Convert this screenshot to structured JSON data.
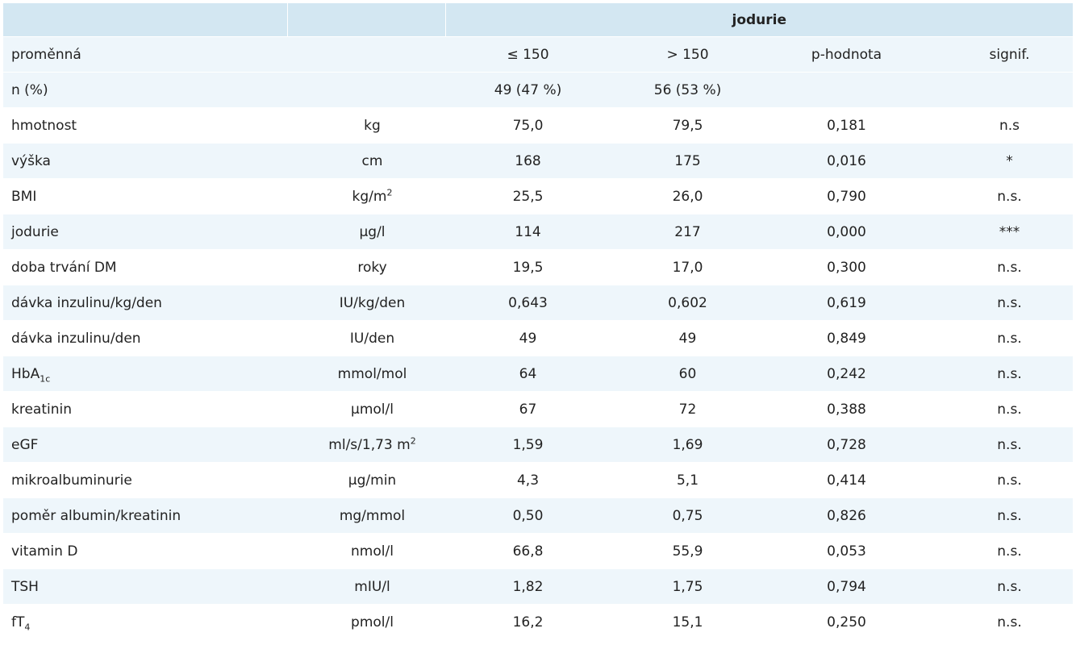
{
  "table": {
    "group_header": "jodurie",
    "column_headers": [
      "proměnná",
      "",
      "≤ 150",
      "> 150",
      "p-hodnota",
      "signif."
    ],
    "rows": [
      {
        "name": "n (%)",
        "unit": "",
        "le150": "49 (47 %)",
        "gt150": "56 (53 %)",
        "p": "",
        "signif": ""
      },
      {
        "name": "hmotnost",
        "unit": "kg",
        "le150": "75,0",
        "gt150": "79,5",
        "p": "0,181",
        "signif": "n.s"
      },
      {
        "name": "výška",
        "unit": "cm",
        "le150": "168",
        "gt150": "175",
        "p": "0,016",
        "signif": "*"
      },
      {
        "name": "BMI",
        "unit": "kg/m",
        "unit_sup": "2",
        "le150": "25,5",
        "gt150": "26,0",
        "p": "0,790",
        "signif": "n.s."
      },
      {
        "name": "jodurie",
        "unit": "μg/l",
        "le150": "114",
        "gt150": "217",
        "p": "0,000",
        "signif": "***"
      },
      {
        "name": "doba trvání DM",
        "unit": "roky",
        "le150": "19,5",
        "gt150": "17,0",
        "p": "0,300",
        "signif": "n.s."
      },
      {
        "name": "dávka inzulinu/kg/den",
        "unit": "IU/kg/den",
        "le150": "0,643",
        "gt150": "0,602",
        "p": "0,619",
        "signif": "n.s."
      },
      {
        "name": "dávka inzulinu/den",
        "unit": "IU/den",
        "le150": "49",
        "gt150": "49",
        "p": "0,849",
        "signif": "n.s."
      },
      {
        "name": "HbA",
        "name_sub": "1c",
        "unit": "mmol/mol",
        "le150": "64",
        "gt150": "60",
        "p": "0,242",
        "signif": "n.s."
      },
      {
        "name": "kreatinin",
        "unit": "μmol/l",
        "le150": "67",
        "gt150": "72",
        "p": "0,388",
        "signif": "n.s."
      },
      {
        "name": "eGF",
        "unit": "ml/s/1,73 m",
        "unit_sup": "2",
        "le150": "1,59",
        "gt150": "1,69",
        "p": "0,728",
        "signif": "n.s."
      },
      {
        "name": "mikroalbuminurie",
        "unit": "μg/min",
        "le150": "4,3",
        "gt150": "5,1",
        "p": "0,414",
        "signif": "n.s."
      },
      {
        "name": "poměr albumin/kreatinin",
        "unit": "mg/mmol",
        "le150": "0,50",
        "gt150": "0,75",
        "p": "0,826",
        "signif": "n.s."
      },
      {
        "name": "vitamin D",
        "unit": "nmol/l",
        "le150": "66,8",
        "gt150": "55,9",
        "p": "0,053",
        "signif": "n.s."
      },
      {
        "name": "TSH",
        "unit": "mIU/l",
        "le150": "1,82",
        "gt150": "1,75",
        "p": "0,794",
        "signif": "n.s."
      },
      {
        "name": "fT",
        "name_sub": "4",
        "unit": "pmol/l",
        "le150": "16,2",
        "gt150": "15,1",
        "p": "0,250",
        "signif": "n.s."
      }
    ]
  },
  "colors": {
    "header_bg": "#d3e7f2",
    "stripe_bg": "#eef6fb",
    "text": "#222222"
  }
}
